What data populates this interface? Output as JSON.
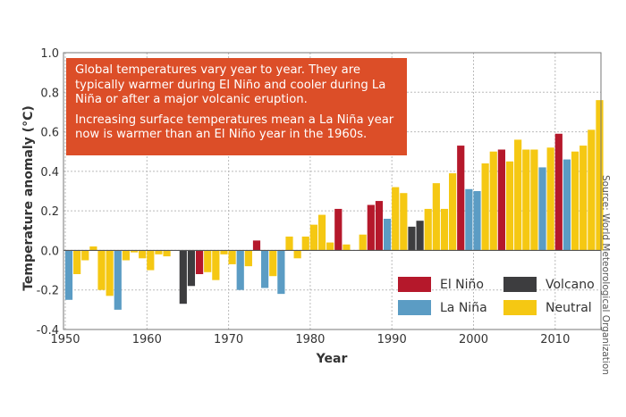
{
  "chart_data": {
    "type": "bar",
    "xlabel": "Year",
    "ylabel": "Temperature anomaly (°C)",
    "ylim": [
      -0.4,
      1.0
    ],
    "yticks": [
      "-0.4",
      "-0.2",
      "0.0",
      "0.2",
      "0.4",
      "0.6",
      "0.8",
      "1.0"
    ],
    "xticks": [
      "1950",
      "1960",
      "1970",
      "1980",
      "1990",
      "2000",
      "2010"
    ],
    "grid": true,
    "legend_position": "bottom-right",
    "annotation": [
      "Global temperatures vary year to year. They are typically warmer during El Niño and cooler during La Niña or after a major volcanic eruption.",
      "Increasing surface temperatures mean a La Niña year now is warmer than an El Niño year in the 1960s."
    ],
    "source": "Source: World Meteorological Organization",
    "categories_legend": [
      {
        "key": "E",
        "name": "El Niño",
        "color": "#B5182B"
      },
      {
        "key": "L",
        "name": "La Niña",
        "color": "#5B9CC4"
      },
      {
        "key": "V",
        "name": "Volcano",
        "color": "#3D3D3F"
      },
      {
        "key": "N",
        "name": "Neutral",
        "color": "#F5C813"
      }
    ],
    "years": [
      1950,
      1951,
      1952,
      1953,
      1954,
      1955,
      1956,
      1957,
      1958,
      1959,
      1960,
      1961,
      1962,
      1963,
      1964,
      1965,
      1966,
      1967,
      1968,
      1969,
      1970,
      1971,
      1972,
      1973,
      1974,
      1975,
      1976,
      1977,
      1978,
      1979,
      1980,
      1981,
      1982,
      1983,
      1984,
      1985,
      1986,
      1987,
      1988,
      1989,
      1990,
      1991,
      1992,
      1993,
      1994,
      1995,
      1996,
      1997,
      1998,
      1999,
      2000,
      2001,
      2002,
      2003,
      2004,
      2005,
      2006,
      2007,
      2008,
      2009,
      2010,
      2011,
      2012,
      2013,
      2014,
      2015
    ],
    "values": [
      -0.25,
      -0.12,
      -0.05,
      0.02,
      -0.2,
      -0.23,
      -0.3,
      -0.05,
      -0.01,
      -0.04,
      -0.1,
      -0.02,
      -0.03,
      0.0,
      -0.27,
      -0.18,
      -0.12,
      -0.11,
      -0.15,
      -0.02,
      -0.07,
      -0.2,
      -0.08,
      0.05,
      -0.19,
      -0.13,
      -0.22,
      0.07,
      -0.04,
      0.07,
      0.13,
      0.18,
      0.04,
      0.21,
      0.03,
      0.0,
      0.08,
      0.23,
      0.25,
      0.16,
      0.32,
      0.29,
      0.12,
      0.15,
      0.21,
      0.34,
      0.21,
      0.39,
      0.53,
      0.31,
      0.3,
      0.44,
      0.5,
      0.51,
      0.45,
      0.56,
      0.51,
      0.51,
      0.42,
      0.52,
      0.59,
      0.46,
      0.5,
      0.53,
      0.61,
      0.76
    ],
    "types": [
      "L",
      "N",
      "N",
      "N",
      "N",
      "N",
      "L",
      "N",
      "N",
      "N",
      "N",
      "N",
      "N",
      "N",
      "V",
      "V",
      "E",
      "N",
      "N",
      "N",
      "N",
      "L",
      "N",
      "E",
      "L",
      "N",
      "L",
      "N",
      "N",
      "N",
      "N",
      "N",
      "N",
      "E",
      "N",
      "N",
      "N",
      "E",
      "E",
      "L",
      "N",
      "N",
      "V",
      "V",
      "N",
      "N",
      "N",
      "N",
      "E",
      "L",
      "L",
      "N",
      "N",
      "E",
      "N",
      "N",
      "N",
      "N",
      "L",
      "N",
      "E",
      "L",
      "N",
      "N",
      "N",
      "N"
    ]
  }
}
